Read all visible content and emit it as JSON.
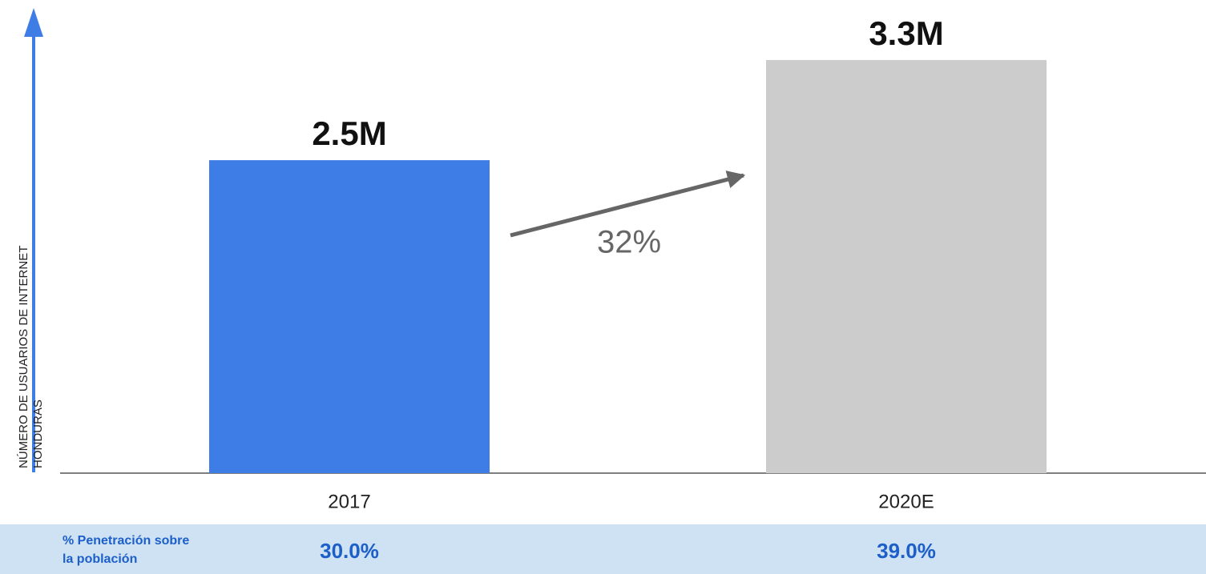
{
  "chart_data": {
    "type": "bar",
    "y_axis_label": [
      "NÚMERO DE USUARIOS DE INTERNET",
      "HONDURAS"
    ],
    "categories": [
      "2017",
      "2020E"
    ],
    "values": [
      2.5,
      3.3
    ],
    "value_labels": [
      "2.5M",
      "3.3M"
    ],
    "colors": [
      "#3f7de6",
      "#cccccc"
    ],
    "annotation": "32%",
    "penetration": {
      "label": [
        "% Penetración sobre",
        "la población"
      ],
      "values": [
        "30.0%",
        "39.0%"
      ]
    }
  }
}
